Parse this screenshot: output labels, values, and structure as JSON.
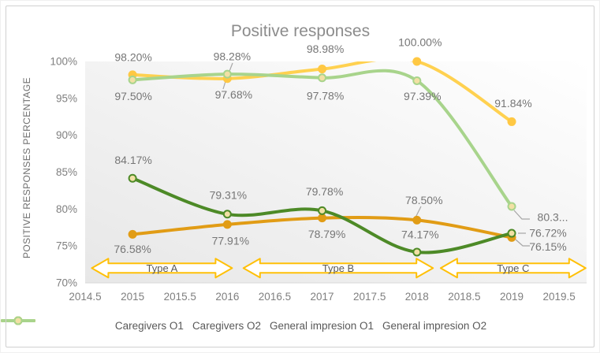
{
  "chart": {
    "title": "Positive responses",
    "y_axis_title": "POSITIVE RESPONSES PERCENTAGE"
  },
  "chart_data": {
    "type": "line",
    "title": "Positive responses",
    "xlabel": "",
    "ylabel": "POSITIVE RESPONSES PERCENTAGE",
    "x": [
      2015,
      2016,
      2017,
      2018,
      2019
    ],
    "xlim": [
      2014.5,
      2019.79
    ],
    "ylim": [
      70,
      100
    ],
    "x_tick_values": [
      2014.5,
      2015,
      2015.5,
      2016,
      2016.5,
      2017,
      2017.5,
      2018,
      2018.5,
      2019,
      2019.5
    ],
    "x_tick_labels": [
      "2014.5",
      "2015",
      "2015.5",
      "2016",
      "2016.5",
      "2017",
      "2017.5",
      "2018",
      "2018.5",
      "2019",
      "2019.5"
    ],
    "y_tick_values": [
      70,
      75,
      80,
      85,
      90,
      95,
      100
    ],
    "y_tick_labels": [
      "70%",
      "75%",
      "80%",
      "85%",
      "90%",
      "95%",
      "100%"
    ],
    "grid": false,
    "legend_position": "bottom",
    "smoothed_lines": true,
    "plot_bg_gradient_bottomleft_to_topright": [
      "#e7e7e7",
      "#ffffff"
    ],
    "axis_line_color": "#d9d9d9",
    "tick_label_color": "#7f7f7f",
    "data_label_color": "#767676",
    "title_color": "#8c8c8c",
    "leader_line_color": "#a6a6a6",
    "draw_order": [
      2,
      3,
      0,
      1
    ],
    "series": [
      {
        "name": "Caregivers O1",
        "color": "#E19C15",
        "marker": "filled-circle",
        "marker_fill": "#E19C15",
        "values": [
          76.58,
          77.91,
          78.79,
          78.5,
          76.15
        ],
        "labels": [
          "76.58%",
          "77.91%",
          "78.79%",
          "78.50%",
          "76.15%"
        ],
        "label_offsets": [
          [
            0,
            19
          ],
          [
            4,
            21
          ],
          [
            6,
            21
          ],
          [
            9,
            -25
          ],
          [
            46,
            12
          ]
        ]
      },
      {
        "name": "Caregivers O2",
        "color": "#4D8A27",
        "marker": "open-circle",
        "marker_fill": "#F2E0A4",
        "values": [
          84.17,
          79.31,
          79.78,
          74.17,
          76.72
        ],
        "labels": [
          "84.17%",
          "79.31%",
          "79.78%",
          "74.17%",
          "76.72%"
        ],
        "label_offsets": [
          [
            1,
            -23
          ],
          [
            1,
            -24
          ],
          [
            3,
            -24
          ],
          [
            4,
            -22
          ],
          [
            46,
            0
          ]
        ]
      },
      {
        "name": "General impresion O1",
        "color": "#FFD150",
        "marker": "filled-circle",
        "marker_fill": "#FFC843",
        "values": [
          98.2,
          97.68,
          98.98,
          100.0,
          91.84
        ],
        "labels": [
          "98.20%",
          "97.68%",
          "98.98%",
          "100.00%",
          "91.84%"
        ],
        "label_offsets": [
          [
            1,
            -22
          ],
          [
            8,
            21
          ],
          [
            4,
            -25
          ],
          [
            4,
            -24
          ],
          [
            2,
            -23
          ]
        ]
      },
      {
        "name": "General impresion O2",
        "color": "#A8D48C",
        "marker": "open-circle",
        "marker_fill": "#F2E0A4",
        "values": [
          97.5,
          98.28,
          97.78,
          97.39,
          80.36
        ],
        "labels": [
          "97.50%",
          "98.28%",
          "97.78%",
          "97.39%",
          "80.3..."
        ],
        "label_offsets": [
          [
            1,
            21
          ],
          [
            6,
            -22
          ],
          [
            4,
            23
          ],
          [
            7,
            20
          ],
          [
            52,
            14
          ]
        ]
      }
    ],
    "annotations": [
      {
        "label": "Type A",
        "x_start": 2014.57,
        "x_end": 2016.05,
        "y": 72.0
      },
      {
        "label": "Type B",
        "x_start": 2016.17,
        "x_end": 2018.17,
        "y": 72.0
      },
      {
        "label": "Type C",
        "x_start": 2018.25,
        "x_end": 2019.78,
        "y": 72.0
      }
    ],
    "annotation_style": {
      "stroke": "#FFC008",
      "fill": "#FFFFFF",
      "text_color": "#595959"
    },
    "leader_lines": [
      [
        [
          294,
          79
        ],
        [
          287,
          97
        ]
      ],
      [
        [
          286,
          99
        ],
        [
          282,
          112
        ]
      ],
      [
        [
          533,
          261
        ],
        [
          526,
          275
        ]
      ],
      [
        [
          651,
          266
        ],
        [
          661,
          277
        ],
        [
          671,
          277
        ]
      ],
      [
        [
          656,
          295
        ],
        [
          666,
          295
        ]
      ],
      [
        [
          653,
          303
        ],
        [
          662,
          311
        ],
        [
          671,
          311
        ]
      ]
    ]
  }
}
